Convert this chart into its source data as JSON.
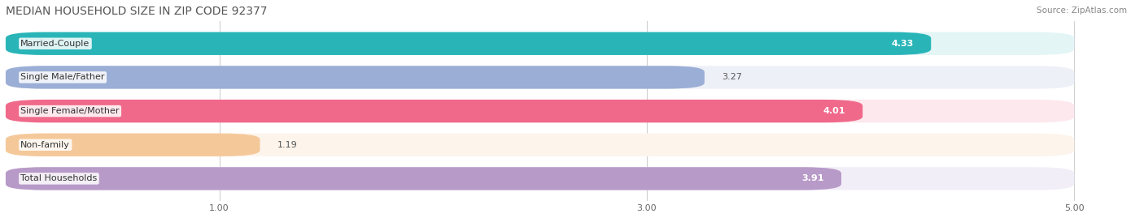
{
  "title": "MEDIAN HOUSEHOLD SIZE IN ZIP CODE 92377",
  "source": "Source: ZipAtlas.com",
  "categories": [
    "Married-Couple",
    "Single Male/Father",
    "Single Female/Mother",
    "Non-family",
    "Total Households"
  ],
  "values": [
    4.33,
    3.27,
    4.01,
    1.19,
    3.91
  ],
  "bar_colors": [
    "#29b5b8",
    "#9baed6",
    "#f0698a",
    "#f5c89a",
    "#b89ac8"
  ],
  "bar_bg_colors": [
    "#e4f5f6",
    "#eef0f8",
    "#fde8ed",
    "#fdf5ec",
    "#f2eef8"
  ],
  "value_inside": [
    true,
    false,
    true,
    false,
    true
  ],
  "xlim": [
    0,
    5.3
  ],
  "xmin": 0,
  "xticks": [
    1.0,
    3.0,
    5.0
  ],
  "title_fontsize": 10,
  "label_fontsize": 8,
  "value_fontsize": 8,
  "background_color": "#ffffff"
}
